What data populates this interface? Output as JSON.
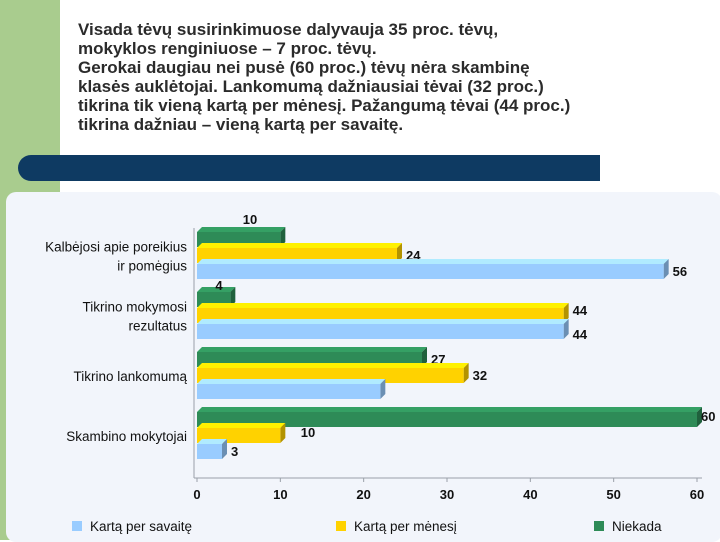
{
  "slide_text": {
    "lines": [
      "Visada tėvų susirinkimuose dalyvauja 35 proc. tėvų,",
      "mokyklos renginiuose – 7 proc. tėvų.",
      "Gerokai daugiau nei pusė (60 proc.) tėvų nėra skambinę",
      "klasės auklėtojai. Lankomumą dažniausiai tėvai (32 proc.)",
      "tikrina tik vieną kartą per mėnesį. Pažangumą tėvai (44 proc.)",
      "tikrina dažniau – vieną kartą per savaitę."
    ]
  },
  "colors": {
    "sidebar": "#a9cc8e",
    "title_bar": "#0e3a62",
    "series": [
      "#99ccff",
      "#ffd200",
      "#2e8b57"
    ]
  },
  "chart_data": {
    "type": "bar",
    "orientation": "horizontal",
    "categories": [
      [
        "Kalbėjosi apie poreikius",
        "ir pomėgius"
      ],
      [
        "Tikrino mokymosi",
        "rezultatus"
      ],
      [
        "Tikrino lankomumą"
      ],
      [
        "Skambino mokytojai"
      ]
    ],
    "series": [
      {
        "name": "Kartą per savaitę",
        "values": [
          56,
          44,
          22,
          3
        ],
        "labels": [
          "56",
          "44",
          null,
          "3"
        ]
      },
      {
        "name": "Kartą per mėnesį",
        "values": [
          24,
          44,
          32,
          10
        ],
        "labels": [
          "24",
          "44",
          "32",
          null
        ]
      },
      {
        "name": "Niekada",
        "values": [
          10,
          4,
          27,
          60
        ],
        "labels": [
          "10",
          "4",
          "27",
          "60"
        ]
      }
    ],
    "extra_labels": [
      {
        "text": "10",
        "category": 3
      }
    ],
    "xlim": [
      0,
      60
    ],
    "xticks": [
      "0",
      "10",
      "20",
      "30",
      "40",
      "50",
      "60"
    ],
    "legend_position": "bottom"
  }
}
